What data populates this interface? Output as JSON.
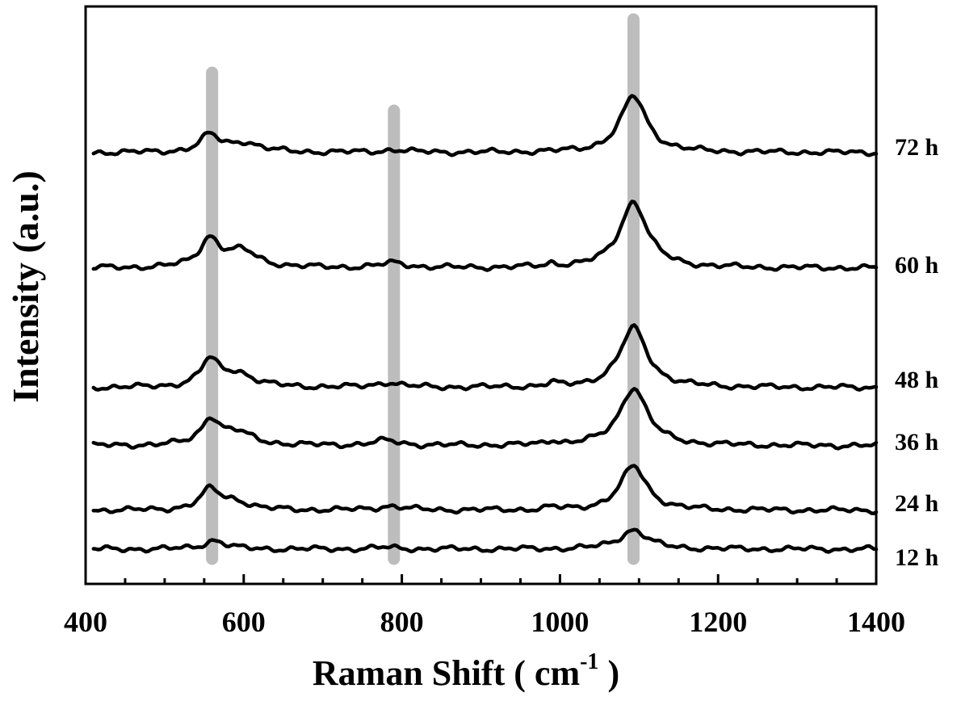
{
  "chart_data": {
    "type": "line",
    "xlabel_main": "Raman Shift ( cm",
    "xlabel_sup": "-1",
    "xlabel_end": " )",
    "ylabel": "Intensity (a.u.)",
    "xlim": [
      400,
      1400
    ],
    "x_ticks": [
      400,
      600,
      800,
      1000,
      1200,
      1400
    ],
    "x_tick_labels": [
      "400",
      "600",
      "800",
      "1000",
      "1200",
      "1400"
    ],
    "y_ticks_shown": false,
    "grid": false,
    "highlight_bands": [
      {
        "x": 560,
        "from_offset": -30,
        "to_offset": 40
      },
      {
        "x": 790,
        "from_offset": 2,
        "to_offset": 40
      },
      {
        "x": 1093,
        "from_offset": -57,
        "to_offset": 40
      }
    ],
    "series": [
      {
        "name": "12 h",
        "offset": 0,
        "peaks": [
          [
            563,
            11,
            32
          ],
          [
            780,
            2,
            40
          ],
          [
            1093,
            24,
            42
          ]
        ]
      },
      {
        "name": "24 h",
        "offset": 48,
        "peaks": [
          [
            558,
            25,
            30
          ],
          [
            590,
            10,
            42
          ],
          [
            785,
            5,
            42
          ],
          [
            990,
            3,
            18
          ],
          [
            1093,
            55,
            40
          ]
        ]
      },
      {
        "name": "36 h",
        "offset": 128,
        "peaks": [
          [
            558,
            32,
            28
          ],
          [
            592,
            15,
            48
          ],
          [
            780,
            6,
            40
          ],
          [
            990,
            5,
            15
          ],
          [
            1093,
            72,
            42
          ]
        ]
      },
      {
        "name": "48 h",
        "offset": 200,
        "peaks": [
          [
            557,
            32,
            28
          ],
          [
            592,
            17,
            48
          ],
          [
            782,
            6,
            35
          ],
          [
            990,
            4,
            15
          ],
          [
            1093,
            74,
            42
          ]
        ]
      },
      {
        "name": "60 h",
        "offset": 348,
        "peaks": [
          [
            557,
            35,
            30
          ],
          [
            598,
            20,
            48
          ],
          [
            790,
            6,
            40
          ],
          [
            990,
            4,
            15
          ],
          [
            1093,
            82,
            42
          ]
        ]
      },
      {
        "name": "72 h",
        "offset": 491,
        "peaks": [
          [
            557,
            21,
            28
          ],
          [
            600,
            12,
            48
          ],
          [
            790,
            3,
            38
          ],
          [
            1093,
            70,
            40
          ]
        ]
      }
    ]
  }
}
